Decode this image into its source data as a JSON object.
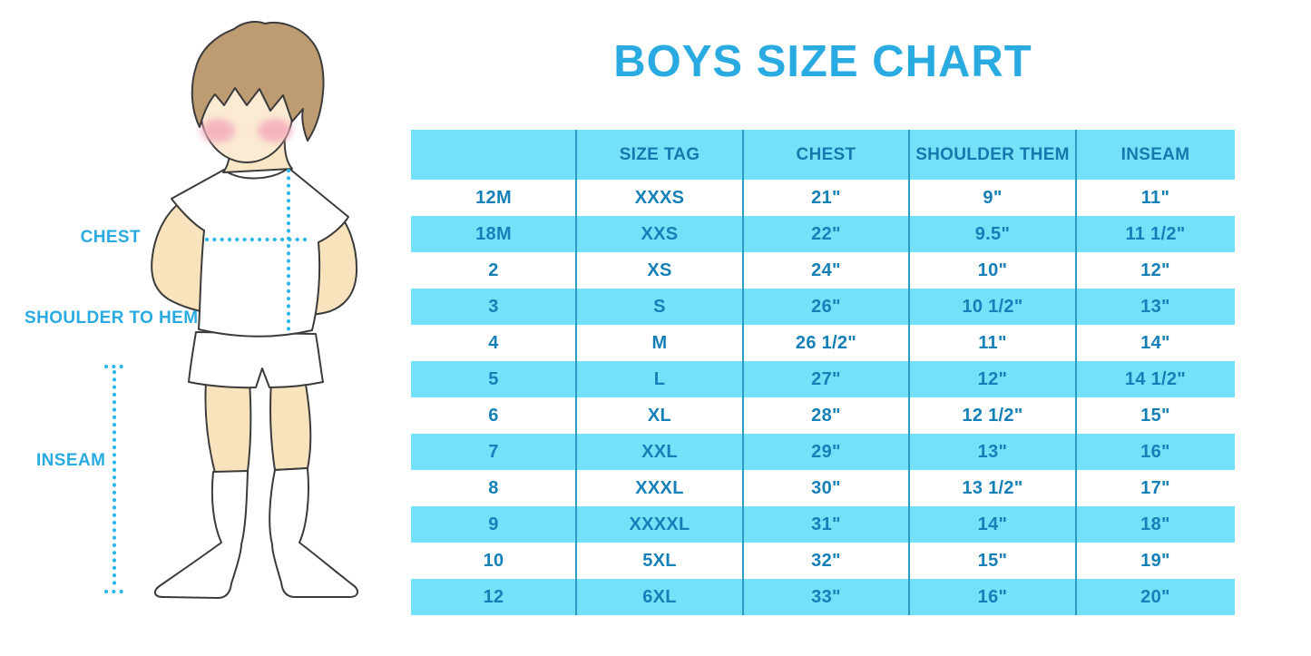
{
  "title": "BOYS SIZE CHART",
  "figure": {
    "chest_label": "CHEST",
    "shoulder_label": "SHOULDER TO HEM",
    "inseam_label": "INSEAM"
  },
  "chart_data": {
    "type": "table",
    "title": "BOYS SIZE CHART",
    "columns": [
      "",
      "SIZE TAG",
      "CHEST",
      "SHOULDER THEM",
      "INSEAM"
    ],
    "rows": [
      [
        "12M",
        "XXXS",
        "21\"",
        "9\"",
        "11\""
      ],
      [
        "18M",
        "XXS",
        "22\"",
        "9.5\"",
        "11 1/2\""
      ],
      [
        "2",
        "XS",
        "24\"",
        "10\"",
        "12\""
      ],
      [
        "3",
        "S",
        "26\"",
        "10 1/2\"",
        "13\""
      ],
      [
        "4",
        "M",
        "26 1/2\"",
        "11\"",
        "14\""
      ],
      [
        "5",
        "L",
        "27\"",
        "12\"",
        "14 1/2\""
      ],
      [
        "6",
        "XL",
        "28\"",
        "12 1/2\"",
        "15\""
      ],
      [
        "7",
        "XXL",
        "29\"",
        "13\"",
        "16\""
      ],
      [
        "8",
        "XXXL",
        "30\"",
        "13 1/2\"",
        "17\""
      ],
      [
        "9",
        "XXXXL",
        "31\"",
        "14\"",
        "18\""
      ],
      [
        "10",
        "5XL",
        "32\"",
        "15\"",
        "19\""
      ],
      [
        "12",
        "6XL",
        "33\"",
        "16\"",
        "20\""
      ]
    ],
    "layout": {
      "striped": true,
      "stripe_rows": "even (18M, 3, 5, 7, 9, 12)",
      "grid": "vertical column separators only"
    }
  },
  "colors": {
    "accent_blue": "#29ABE2",
    "stripe_cyan": "#74E1F8",
    "table_text": "#1580B8",
    "grid_line": "#2B9AC4",
    "dotted_line": "#2DB7EA",
    "skin": "#F8E3BC",
    "face": "#FBEBD3",
    "hair": "#BE9C72",
    "cheek": "#F3A8B9"
  }
}
